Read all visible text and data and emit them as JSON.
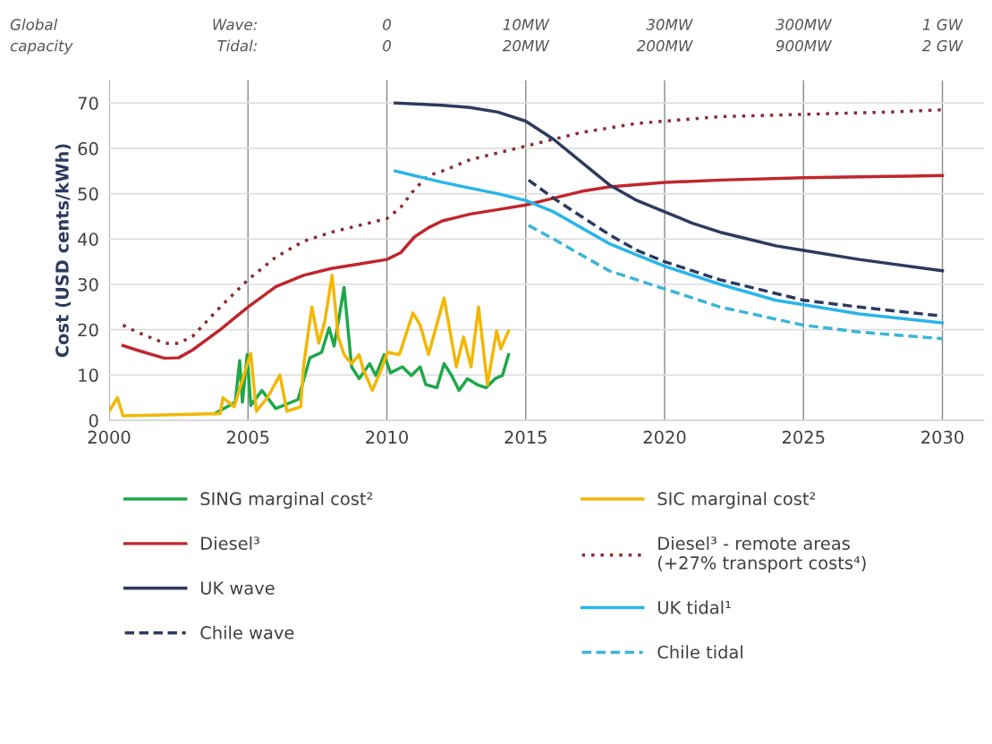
{
  "chart_data": {
    "type": "line",
    "ylabel": "Cost (USD cents/kWh)",
    "xlim": [
      2000,
      2031.5
    ],
    "ylim": [
      0,
      75
    ],
    "xticks": [
      2000,
      2005,
      2010,
      2015,
      2020,
      2025,
      2030
    ],
    "yticks": [
      0,
      10,
      20,
      30,
      40,
      50,
      60,
      70
    ],
    "annotations": [
      "Global\ncapacity",
      "Wave:\nTidal:",
      "0\n0",
      "10MW\n20MW",
      "30MW\n200MW",
      "300MW\n900MW",
      "1 GW\n2 GW"
    ],
    "grid": true,
    "legend": "bottom",
    "series": [
      {
        "name": "SING marginal cost²",
        "color": "#1ea84a",
        "line_style": "solid",
        "x": [
          2003.8,
          2004.54,
          2004.7,
          2004.8,
          2004.97,
          2005.1,
          2005.5,
          2006,
          2006.8,
          2007.23,
          2007.65,
          2007.92,
          2008.1,
          2008.46,
          2008.73,
          2009,
          2009.38,
          2009.6,
          2009.9,
          2010.13,
          2010.56,
          2010.88,
          2011.2,
          2011.4,
          2011.8,
          2012.06,
          2012.33,
          2012.6,
          2012.9,
          2013.25,
          2013.57,
          2013.9,
          2014.16,
          2014.38
        ],
        "values": [
          1.5,
          4,
          13.2,
          4,
          14.5,
          3.3,
          6.6,
          2.6,
          4.6,
          13.8,
          15,
          20.4,
          16.4,
          29.3,
          11.8,
          9.2,
          12.5,
          9.9,
          14.5,
          10.5,
          11.8,
          9.9,
          11.8,
          7.9,
          7.2,
          12.5,
          9.9,
          6.6,
          9.2,
          7.9,
          7.2,
          9.2,
          9.9,
          14.5
        ]
      },
      {
        "name": "SIC marginal cost²",
        "color": "#f2b705",
        "line_style": "solid",
        "x": [
          2000,
          2000.3,
          2000.5,
          2002,
          2004,
          2004.1,
          2004.5,
          2005.1,
          2005.3,
          2005.7,
          2006.15,
          2006.4,
          2006.9,
          2007.0,
          2007.3,
          2007.55,
          2007.76,
          2008.03,
          2008.25,
          2008.46,
          2008.73,
          2009,
          2009.16,
          2009.48,
          2009.75,
          2010.02,
          2010.45,
          2010.94,
          2011.2,
          2011.5,
          2012.06,
          2012.5,
          2012.76,
          2013.03,
          2013.3,
          2013.62,
          2013.95,
          2014.1,
          2014.38
        ],
        "values": [
          2,
          5,
          1,
          1.2,
          1.5,
          5,
          3,
          14.8,
          2,
          5,
          10,
          2,
          3,
          12,
          25,
          17,
          21.7,
          32,
          18.4,
          14.5,
          12.5,
          14.5,
          11,
          6.6,
          10.5,
          15,
          14.5,
          23.7,
          21,
          14.5,
          27,
          11.8,
          18.4,
          11.8,
          25,
          7.9,
          19.7,
          15.8,
          19.7
        ]
      },
      {
        "name": "Diesel³",
        "color": "#c0262d",
        "line_style": "solid",
        "x": [
          2000.5,
          2001,
          2002,
          2002.5,
          2003,
          2004,
          2005,
          2006,
          2007,
          2008,
          2009,
          2010,
          2010.5,
          2011,
          2011.5,
          2012,
          2013,
          2014,
          2015,
          2016,
          2017,
          2018,
          2019,
          2020,
          2022,
          2025,
          2028,
          2030
        ],
        "values": [
          16.5,
          15.5,
          13.7,
          13.8,
          15.5,
          20,
          25,
          29.5,
          32,
          33.5,
          34.5,
          35.5,
          37,
          40.5,
          42.5,
          44,
          45.5,
          46.5,
          47.5,
          49,
          50.5,
          51.5,
          52,
          52.5,
          53,
          53.5,
          53.8,
          54
        ]
      },
      {
        "name": "Diesel³ - remote areas\n(+27% transport costs⁴)",
        "color": "#8a2b33",
        "line_style": "dotted",
        "x": [
          2000.5,
          2001,
          2002,
          2002.5,
          2003,
          2004,
          2005,
          2006,
          2007,
          2008,
          2009,
          2010,
          2010.5,
          2011,
          2011.5,
          2012,
          2013,
          2014,
          2015,
          2016,
          2017,
          2018,
          2019,
          2020,
          2022,
          2025,
          2028,
          2030
        ],
        "values": [
          21,
          19.5,
          17,
          17,
          18.5,
          25,
          31,
          36,
          39.5,
          41.5,
          43,
          44.5,
          47,
          51,
          54,
          55,
          57.5,
          59,
          60.5,
          62,
          63.5,
          64.5,
          65.5,
          66,
          67,
          67.5,
          68,
          68.5
        ]
      },
      {
        "name": "UK wave",
        "color": "#2e3a5e",
        "line_style": "solid",
        "x": [
          2010.3,
          2012,
          2013,
          2014,
          2015,
          2016,
          2017,
          2018,
          2019,
          2020,
          2021,
          2022,
          2023,
          2024,
          2025,
          2027,
          2030
        ],
        "values": [
          70,
          69.5,
          69,
          68,
          66,
          62,
          57,
          52,
          48.5,
          46,
          43.5,
          41.5,
          40,
          38.5,
          37.5,
          35.5,
          33
        ]
      },
      {
        "name": "UK tidal¹",
        "color": "#29b5e8",
        "line_style": "solid",
        "x": [
          2010.3,
          2012,
          2014,
          2015,
          2016,
          2017,
          2018,
          2019,
          2020,
          2022,
          2024,
          2025,
          2027,
          2030
        ],
        "values": [
          55,
          52.5,
          50,
          48.5,
          46,
          42.5,
          39,
          36.5,
          34,
          30,
          26.5,
          25.5,
          23.5,
          21.5
        ]
      },
      {
        "name": "Chile wave",
        "color": "#2e3a5e",
        "line_style": "dashed",
        "x": [
          2015.1,
          2016,
          2017,
          2018,
          2019,
          2020,
          2022,
          2025,
          2027,
          2030
        ],
        "values": [
          53,
          49,
          45,
          41,
          37.5,
          35,
          31,
          26.5,
          25,
          23
        ]
      },
      {
        "name": "Chile tidal",
        "color": "#3ab5d8",
        "line_style": "dashed",
        "x": [
          2015.1,
          2016,
          2017,
          2018,
          2019,
          2020,
          2022,
          2025,
          2027,
          2030
        ],
        "values": [
          43,
          40,
          36.5,
          33,
          31,
          29,
          25,
          21,
          19.5,
          18
        ]
      }
    ]
  }
}
